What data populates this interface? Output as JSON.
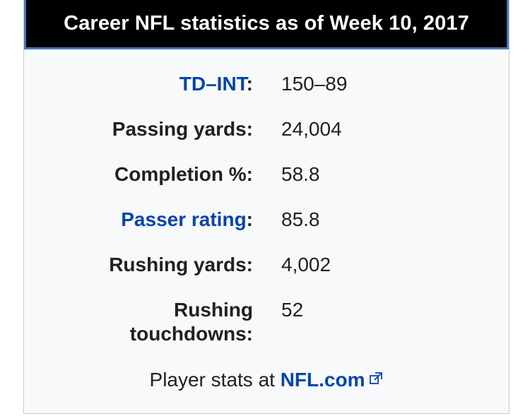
{
  "infobox": {
    "title": "Career NFL statistics as of Week 10, 2017",
    "rows": [
      {
        "label_link": "TD–INT",
        "label_suffix": ":",
        "value": "150–89"
      },
      {
        "label": "Passing yards:",
        "value": "24,004"
      },
      {
        "label": "Completion %:",
        "value": "58.8"
      },
      {
        "label_link": "Passer rating",
        "label_suffix": ":",
        "value": "85.8"
      },
      {
        "label": "Rushing yards:",
        "value": "4,002"
      },
      {
        "label_line1": "Rushing",
        "label_line2": "touchdowns:",
        "value": "52"
      }
    ],
    "footer": {
      "prefix": "Player stats at ",
      "link": "NFL.com",
      "icon": "external-link-icon"
    },
    "colors": {
      "header_bg": "#000000",
      "header_border": "#4a7ab5",
      "link": "#0645ad",
      "box_bg": "#f8f9fa"
    }
  }
}
